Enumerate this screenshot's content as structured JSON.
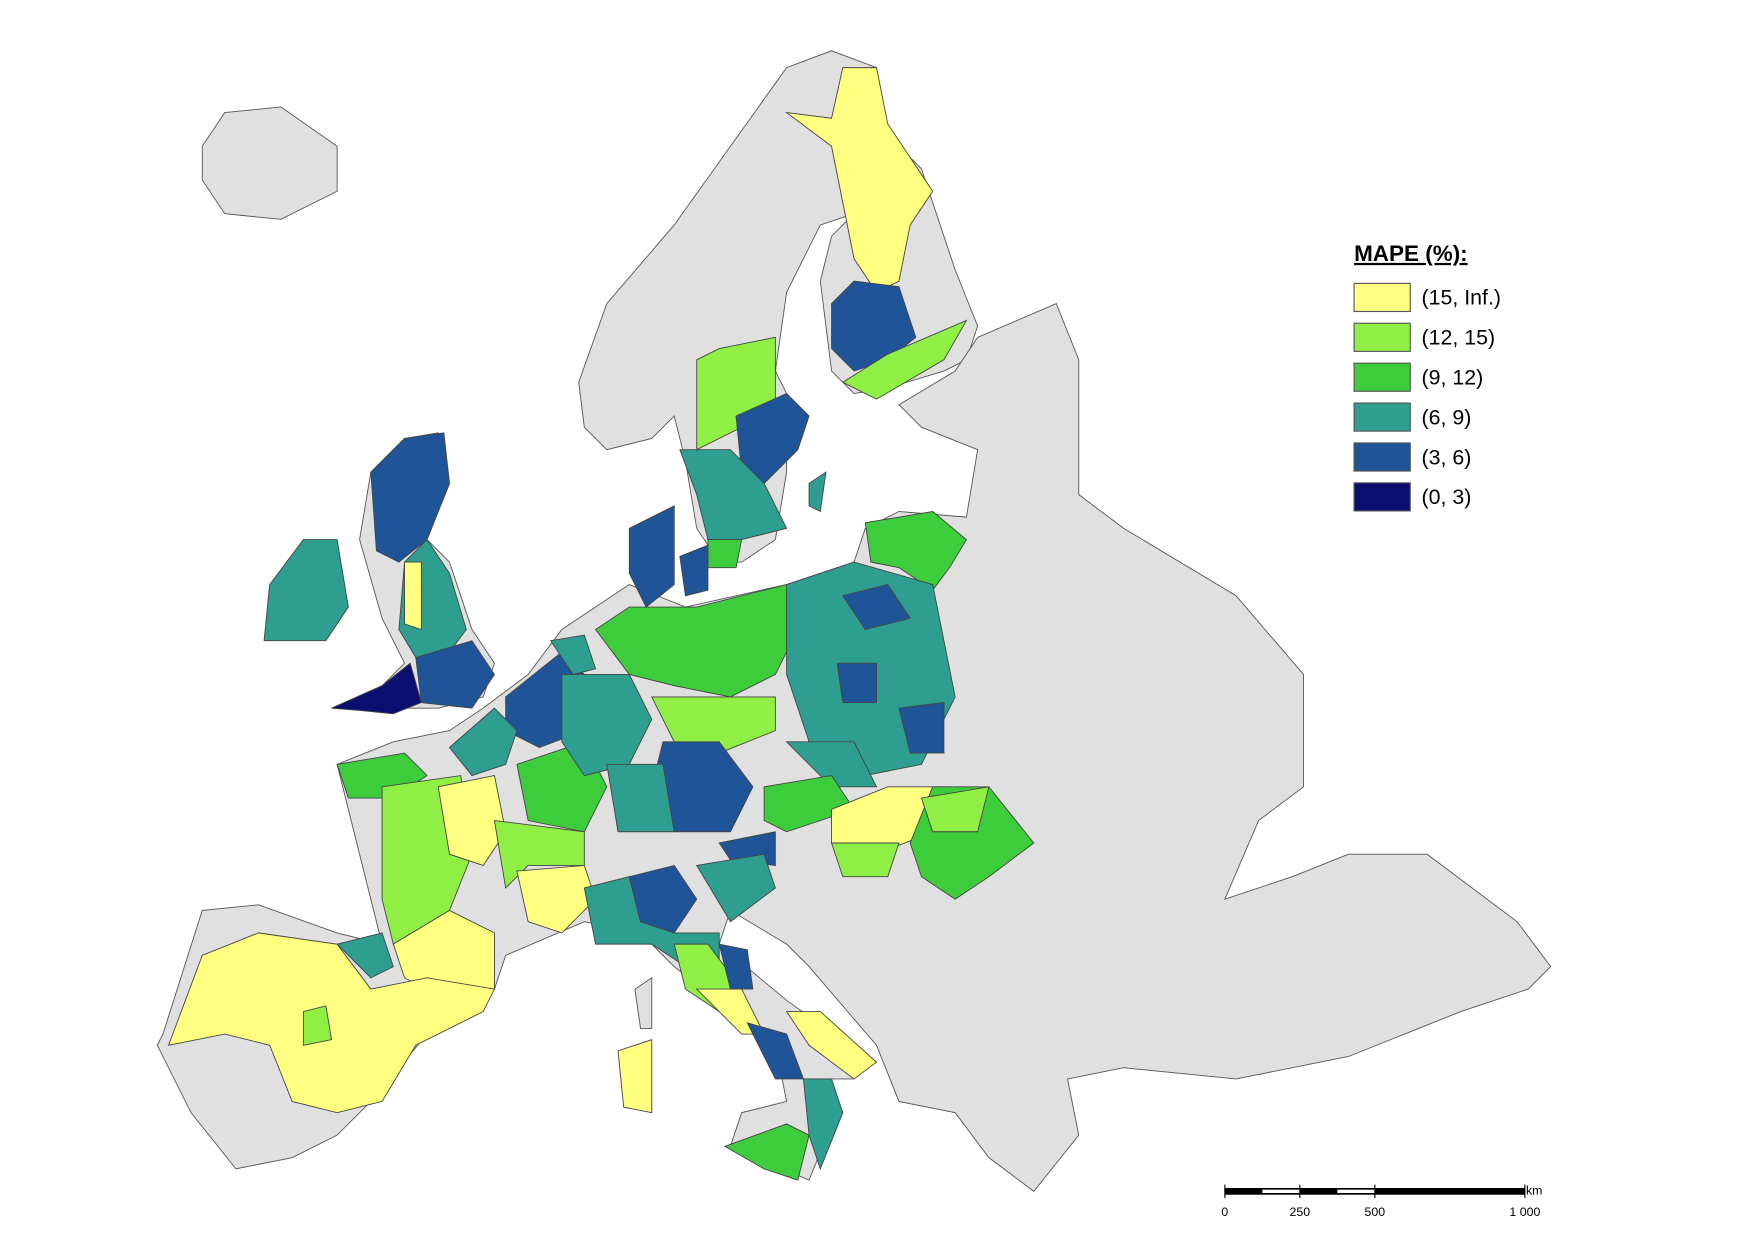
{
  "legend": {
    "title": "MAPE (%):",
    "items": [
      {
        "label": "(15, Inf.)",
        "color": "#ffff80"
      },
      {
        "label": "(12, 15)",
        "color": "#8fef45"
      },
      {
        "label": "(9, 12)",
        "color": "#3ccc3c"
      },
      {
        "label": "(6, 9)",
        "color": "#2d9e8f"
      },
      {
        "label": "(3, 6)",
        "color": "#1f5598"
      },
      {
        "label": "(0, 3)",
        "color": "#0c0f70"
      }
    ]
  },
  "scale_bar": {
    "unit": "km",
    "ticks": [
      0,
      250,
      500,
      {
        "value": 1000,
        "label": "1 000"
      }
    ]
  }
}
